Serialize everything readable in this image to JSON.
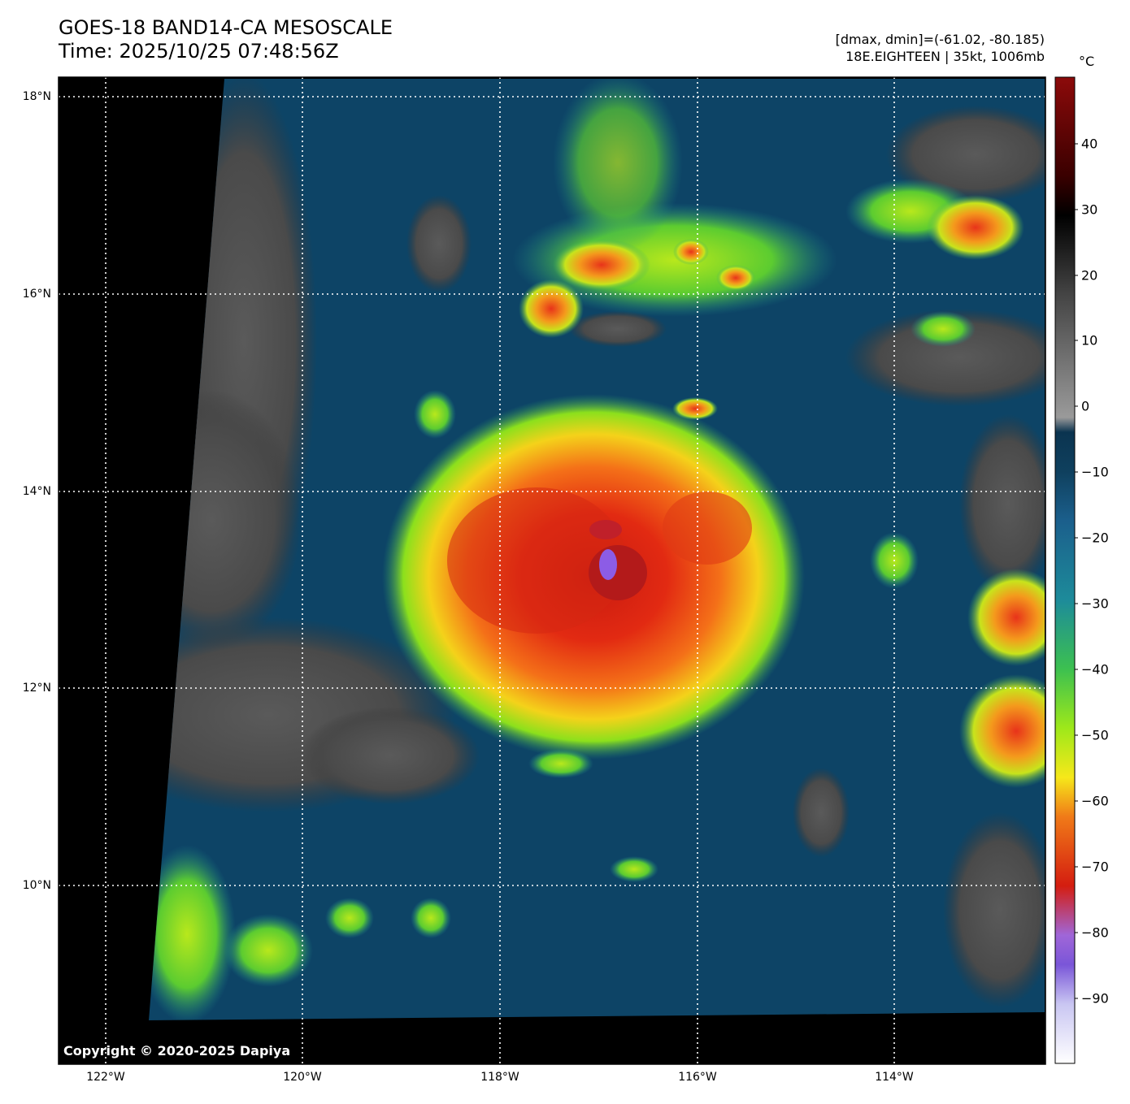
{
  "header": {
    "title_line1": "GOES-18 BAND14-CA MESOSCALE",
    "title_line2": "Time: 2025/10/25 07:48:56Z",
    "info_line1": "[dmax, dmin]=(-61.02, -80.185)",
    "info_line2": "18E.EIGHTEEN | 35kt, 1006mb"
  },
  "map": {
    "latitude_labels": [
      "18°N",
      "16°N",
      "14°N",
      "12°N",
      "10°N"
    ],
    "longitude_labels": [
      "122°W",
      "120°W",
      "118°W",
      "116°W",
      "114°W"
    ],
    "copyright": "Copyright © 2020-2025 Dapiya",
    "storm_center": {
      "lon": -117.0,
      "lat": 13.0
    }
  },
  "colorbar": {
    "unit": "°C",
    "tick_labels": [
      "40",
      "30",
      "20",
      "10",
      "0",
      "−10",
      "−20",
      "−30",
      "−40",
      "−50",
      "−60",
      "−70",
      "−80",
      "−90"
    ],
    "min": -100,
    "max": 50
  },
  "colors": {
    "background": "#000000",
    "cold_top_red": "#d42a10",
    "deep_convection_purple": "#8c5ce6",
    "ocean_blue": "#0d4466",
    "cloud_green": "#7ddc1c",
    "warm_gray": "#6a6a6a",
    "grid": "#ffffff"
  }
}
